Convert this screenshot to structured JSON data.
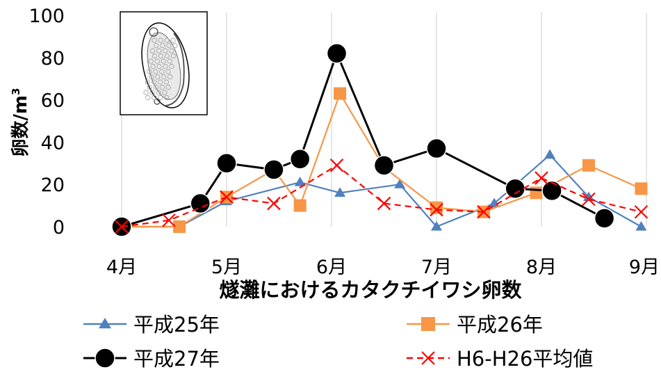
{
  "chart_data": {
    "type": "line",
    "xlabel": "燧灘におけるカタクチイワシ卵数",
    "ylabel": "卵数/m",
    "ylabel_sup": "3",
    "ylim": [
      0,
      100
    ],
    "y_ticks": [
      0,
      20,
      40,
      60,
      80,
      100
    ],
    "xlim": [
      4,
      9
    ],
    "x_ticks": [
      {
        "value": 4,
        "label": "4月"
      },
      {
        "value": 5,
        "label": "5月"
      },
      {
        "value": 6,
        "label": "6月"
      },
      {
        "value": 7,
        "label": "7月"
      },
      {
        "value": 8,
        "label": "8月"
      },
      {
        "value": 9,
        "label": "9月"
      }
    ],
    "grid": "vertical",
    "legend_position": "bottom",
    "inset_image": "fish egg drawing (top-left)",
    "series": [
      {
        "name": "平成25年",
        "color": "#4F81BD",
        "marker": "triangle",
        "dash": false,
        "points": [
          [
            4.0,
            0
          ],
          [
            4.55,
            0
          ],
          [
            5.0,
            12
          ],
          [
            5.7,
            21
          ],
          [
            6.08,
            16
          ],
          [
            6.65,
            20
          ],
          [
            7.0,
            0
          ],
          [
            7.55,
            11
          ],
          [
            8.08,
            34
          ],
          [
            8.45,
            14
          ],
          [
            8.95,
            0
          ]
        ]
      },
      {
        "name": "平成26年",
        "color": "#F79646",
        "marker": "square",
        "dash": false,
        "points": [
          [
            4.0,
            0
          ],
          [
            4.55,
            0
          ],
          [
            5.0,
            14
          ],
          [
            5.45,
            27
          ],
          [
            5.7,
            10
          ],
          [
            6.08,
            63
          ],
          [
            6.5,
            28
          ],
          [
            7.0,
            9
          ],
          [
            7.45,
            7
          ],
          [
            7.95,
            16
          ],
          [
            8.45,
            29
          ],
          [
            8.95,
            18
          ]
        ]
      },
      {
        "name": "平成27年",
        "color": "#000000",
        "marker": "circle",
        "dash": false,
        "points": [
          [
            4.0,
            0
          ],
          [
            4.75,
            11
          ],
          [
            5.0,
            30
          ],
          [
            5.45,
            27
          ],
          [
            5.7,
            32
          ],
          [
            6.05,
            82
          ],
          [
            6.5,
            29
          ],
          [
            7.0,
            37
          ],
          [
            7.75,
            18
          ],
          [
            8.1,
            17
          ],
          [
            8.6,
            4
          ]
        ]
      },
      {
        "name": "H6-H26平均値",
        "color": "#FF0000",
        "marker": "x",
        "dash": true,
        "points": [
          [
            4.0,
            0
          ],
          [
            4.45,
            3
          ],
          [
            5.0,
            14
          ],
          [
            5.45,
            11
          ],
          [
            6.05,
            29
          ],
          [
            6.5,
            11
          ],
          [
            7.0,
            8
          ],
          [
            7.45,
            7
          ],
          [
            8.0,
            23
          ],
          [
            8.45,
            13
          ],
          [
            8.95,
            7
          ]
        ]
      }
    ]
  }
}
